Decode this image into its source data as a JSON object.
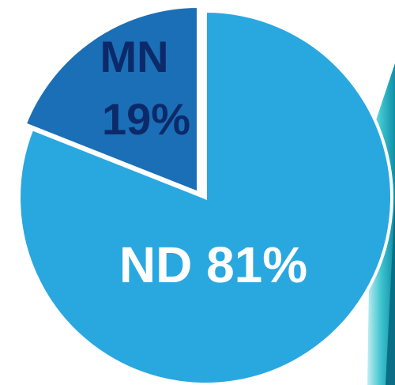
{
  "chart_data": {
    "type": "pie",
    "categories": [
      "ND",
      "MN"
    ],
    "values": [
      81,
      19
    ],
    "value_labels": [
      "81%",
      "19%"
    ],
    "colors": [
      "#29a8e0",
      "#1b6fb6"
    ]
  }
}
